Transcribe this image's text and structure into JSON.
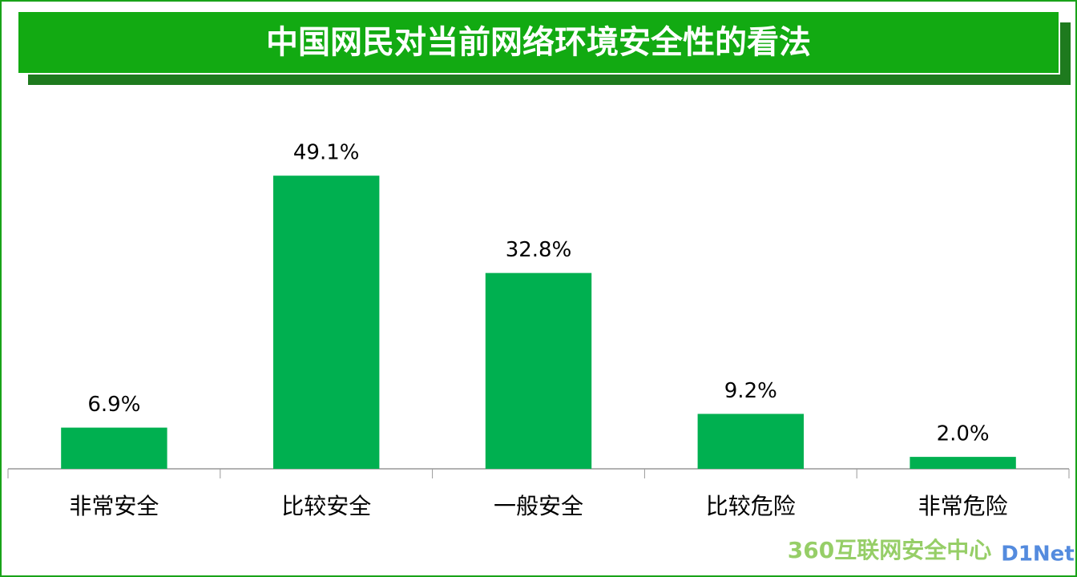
{
  "chart_data": {
    "type": "bar",
    "title": "中国网民对当前网络环境安全性的看法",
    "categories": [
      "非常安全",
      "比较安全",
      "一般安全",
      "比较危险",
      "非常危险"
    ],
    "values": [
      6.9,
      49.1,
      32.8,
      9.2,
      2.0
    ],
    "value_labels": [
      "6.9%",
      "49.1%",
      "32.8%",
      "9.2%",
      "2.0%"
    ],
    "color": "#00b050"
  },
  "logo_text": "360互联网安全中心",
  "watermark": "D1Net"
}
